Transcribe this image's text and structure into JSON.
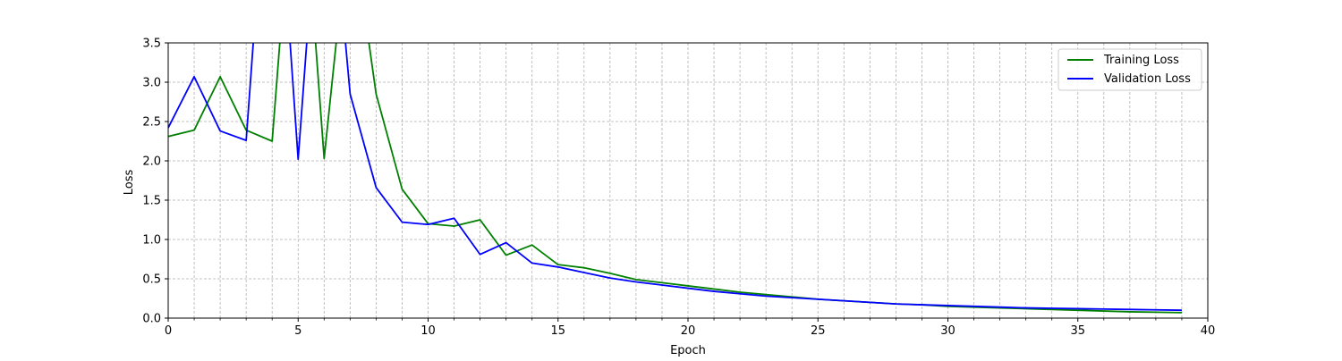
{
  "chart_data": {
    "type": "line",
    "title": "",
    "xlabel": "Epoch",
    "ylabel": "Loss",
    "xlim": [
      0,
      40
    ],
    "ylim": [
      0,
      3.5
    ],
    "xticks": [
      0,
      5,
      10,
      15,
      20,
      25,
      30,
      35,
      40
    ],
    "xtick_labels": [
      "0",
      "5",
      "10",
      "15",
      "20",
      "25",
      "30",
      "35",
      "40"
    ],
    "yticks": [
      0,
      0.5,
      1,
      1.5,
      2,
      2.5,
      3,
      3.5
    ],
    "ytick_labels": [
      "0.0",
      "0.5",
      "1.0",
      "1.5",
      "2.0",
      "2.5",
      "3.0",
      "3.5"
    ],
    "x_minor_ticks": [
      1,
      2,
      3,
      4,
      6,
      7,
      8,
      9,
      11,
      12,
      13,
      14,
      16,
      17,
      18,
      19,
      21,
      22,
      23,
      24,
      26,
      27,
      28,
      29,
      31,
      32,
      33,
      34,
      36,
      37,
      38,
      39
    ],
    "grid": true,
    "legend_position": "top-right",
    "x": [
      0,
      1,
      2,
      3,
      4,
      5,
      6,
      7,
      8,
      9,
      10,
      11,
      12,
      13,
      14,
      15,
      16,
      17,
      18,
      19,
      20,
      21,
      22,
      23,
      24,
      25,
      26,
      27,
      28,
      29,
      30,
      31,
      32,
      33,
      34,
      35,
      36,
      37,
      38,
      39
    ],
    "series": [
      {
        "name": "Training Loss",
        "color": "#008000",
        "values": [
          2.31,
          2.39,
          3.07,
          2.39,
          2.25,
          6.5,
          2.03,
          5.2,
          2.85,
          1.64,
          1.2,
          1.17,
          1.25,
          0.8,
          0.93,
          0.68,
          0.64,
          0.57,
          0.49,
          0.45,
          0.41,
          0.37,
          0.33,
          0.3,
          0.27,
          0.24,
          0.22,
          0.2,
          0.18,
          0.17,
          0.15,
          0.14,
          0.13,
          0.12,
          0.11,
          0.1,
          0.09,
          0.08,
          0.075,
          0.07
        ]
      },
      {
        "name": "Validation Loss",
        "color": "#0000ff",
        "values": [
          2.42,
          3.07,
          2.38,
          2.26,
          6.8,
          2.02,
          6.5,
          2.85,
          1.66,
          1.22,
          1.19,
          1.27,
          0.81,
          0.96,
          0.7,
          0.65,
          0.58,
          0.51,
          0.46,
          0.42,
          0.38,
          0.34,
          0.31,
          0.28,
          0.26,
          0.24,
          0.22,
          0.2,
          0.18,
          0.17,
          0.16,
          0.15,
          0.14,
          0.13,
          0.125,
          0.12,
          0.115,
          0.11,
          0.105,
          0.1
        ]
      }
    ]
  }
}
